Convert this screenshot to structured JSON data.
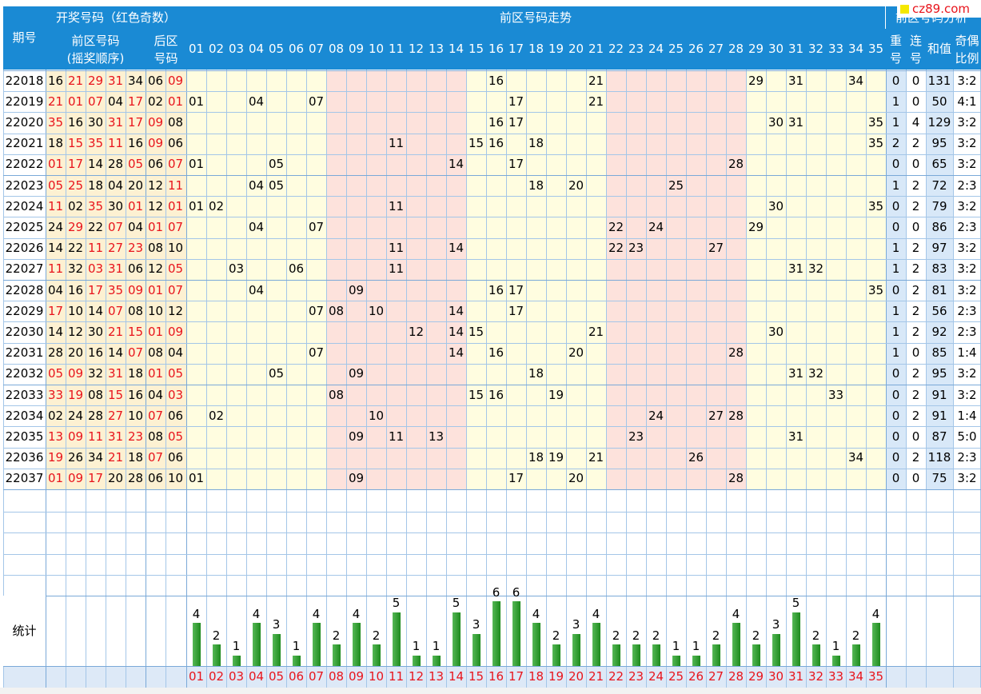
{
  "header": {
    "period": "期号",
    "draw_numbers": "开奖号码（红色奇数）",
    "front_zone": "前区号码",
    "draw_order": "(摇奖顺序)",
    "back_zone": "后区",
    "back_zone_2": "号码",
    "front_trend": "前区号码走势",
    "analysis": "前区号码分析",
    "repeat": "重",
    "repeat_2": "号",
    "consecutive": "连",
    "consecutive_2": "号",
    "sum": "和值",
    "odd_even": "奇偶",
    "odd_even_2": "比例"
  },
  "logo": {
    "text": "cz89.com"
  },
  "stats_label": "统计",
  "trend_numbers": [
    "01",
    "02",
    "03",
    "04",
    "05",
    "06",
    "07",
    "08",
    "09",
    "10",
    "11",
    "12",
    "13",
    "14",
    "15",
    "16",
    "17",
    "18",
    "19",
    "20",
    "21",
    "22",
    "23",
    "24",
    "25",
    "26",
    "27",
    "28",
    "29",
    "30",
    "31",
    "32",
    "33",
    "34",
    "35"
  ],
  "rows": [
    {
      "period": "22018",
      "front": [
        "16",
        "21",
        "29",
        "31",
        "34"
      ],
      "back": [
        "06",
        "09"
      ],
      "repeat": "0",
      "consec": "0",
      "sum": "131",
      "ratio": "3:2"
    },
    {
      "period": "22019",
      "front": [
        "21",
        "01",
        "07",
        "04",
        "17"
      ],
      "back": [
        "02",
        "01"
      ],
      "repeat": "1",
      "consec": "0",
      "sum": "50",
      "ratio": "4:1"
    },
    {
      "period": "22020",
      "front": [
        "35",
        "16",
        "30",
        "31",
        "17"
      ],
      "back": [
        "09",
        "08"
      ],
      "repeat": "1",
      "consec": "4",
      "sum": "129",
      "ratio": "3:2"
    },
    {
      "period": "22021",
      "front": [
        "18",
        "15",
        "35",
        "11",
        "16"
      ],
      "back": [
        "09",
        "06"
      ],
      "repeat": "2",
      "consec": "2",
      "sum": "95",
      "ratio": "3:2"
    },
    {
      "period": "22022",
      "front": [
        "01",
        "17",
        "14",
        "28",
        "05"
      ],
      "back": [
        "06",
        "07"
      ],
      "repeat": "0",
      "consec": "0",
      "sum": "65",
      "ratio": "3:2"
    },
    {
      "period": "22023",
      "front": [
        "05",
        "25",
        "18",
        "04",
        "20"
      ],
      "back": [
        "12",
        "11"
      ],
      "repeat": "1",
      "consec": "2",
      "sum": "72",
      "ratio": "2:3"
    },
    {
      "period": "22024",
      "front": [
        "11",
        "02",
        "35",
        "30",
        "01"
      ],
      "back": [
        "12",
        "01"
      ],
      "repeat": "0",
      "consec": "2",
      "sum": "79",
      "ratio": "3:2"
    },
    {
      "period": "22025",
      "front": [
        "24",
        "29",
        "22",
        "07",
        "04"
      ],
      "back": [
        "01",
        "07"
      ],
      "repeat": "0",
      "consec": "0",
      "sum": "86",
      "ratio": "2:3"
    },
    {
      "period": "22026",
      "front": [
        "14",
        "22",
        "11",
        "27",
        "23"
      ],
      "back": [
        "08",
        "10"
      ],
      "repeat": "1",
      "consec": "2",
      "sum": "97",
      "ratio": "3:2"
    },
    {
      "period": "22027",
      "front": [
        "11",
        "32",
        "03",
        "31",
        "06"
      ],
      "back": [
        "12",
        "05"
      ],
      "repeat": "1",
      "consec": "2",
      "sum": "83",
      "ratio": "3:2"
    },
    {
      "period": "22028",
      "front": [
        "04",
        "16",
        "17",
        "35",
        "09"
      ],
      "back": [
        "01",
        "07"
      ],
      "repeat": "0",
      "consec": "2",
      "sum": "81",
      "ratio": "3:2"
    },
    {
      "period": "22029",
      "front": [
        "17",
        "10",
        "14",
        "07",
        "08"
      ],
      "back": [
        "10",
        "12"
      ],
      "repeat": "1",
      "consec": "2",
      "sum": "56",
      "ratio": "2:3"
    },
    {
      "period": "22030",
      "front": [
        "14",
        "12",
        "30",
        "21",
        "15"
      ],
      "back": [
        "01",
        "09"
      ],
      "repeat": "1",
      "consec": "2",
      "sum": "92",
      "ratio": "2:3"
    },
    {
      "period": "22031",
      "front": [
        "28",
        "20",
        "16",
        "14",
        "07"
      ],
      "back": [
        "08",
        "04"
      ],
      "repeat": "1",
      "consec": "0",
      "sum": "85",
      "ratio": "1:4"
    },
    {
      "period": "22032",
      "front": [
        "05",
        "09",
        "32",
        "31",
        "18"
      ],
      "back": [
        "01",
        "05"
      ],
      "repeat": "0",
      "consec": "2",
      "sum": "95",
      "ratio": "3:2"
    },
    {
      "period": "22033",
      "front": [
        "33",
        "19",
        "08",
        "15",
        "16"
      ],
      "back": [
        "04",
        "03"
      ],
      "repeat": "0",
      "consec": "2",
      "sum": "91",
      "ratio": "3:2"
    },
    {
      "period": "22034",
      "front": [
        "02",
        "24",
        "28",
        "27",
        "10"
      ],
      "back": [
        "07",
        "06"
      ],
      "repeat": "0",
      "consec": "2",
      "sum": "91",
      "ratio": "1:4"
    },
    {
      "period": "22035",
      "front": [
        "13",
        "09",
        "11",
        "31",
        "23"
      ],
      "back": [
        "08",
        "05"
      ],
      "repeat": "0",
      "consec": "0",
      "sum": "87",
      "ratio": "5:0"
    },
    {
      "period": "22036",
      "front": [
        "19",
        "26",
        "34",
        "21",
        "18"
      ],
      "back": [
        "07",
        "06"
      ],
      "repeat": "0",
      "consec": "2",
      "sum": "118",
      "ratio": "2:3"
    },
    {
      "period": "22037",
      "front": [
        "01",
        "09",
        "17",
        "20",
        "28"
      ],
      "back": [
        "06",
        "10"
      ],
      "repeat": "0",
      "consec": "0",
      "sum": "75",
      "ratio": "3:2"
    }
  ],
  "stats": [
    "4",
    "2",
    "1",
    "4",
    "3",
    "1",
    "4",
    "2",
    "4",
    "2",
    "5",
    "1",
    "1",
    "5",
    "3",
    "6",
    "6",
    "4",
    "2",
    "3",
    "4",
    "2",
    "2",
    "2",
    "1",
    "1",
    "2",
    "4",
    "2",
    "3",
    "5",
    "2",
    "1",
    "2",
    "4"
  ],
  "colors": {
    "header_blue": "#1a8ad4",
    "red_number": "#e8141c",
    "yellow_zone": "#fffde0",
    "pink_zone": "#fde2dc",
    "draw_bg": "#fdf1d2",
    "analysis_bg": "#d8e8f8",
    "bar_green": "#3aa43a"
  }
}
